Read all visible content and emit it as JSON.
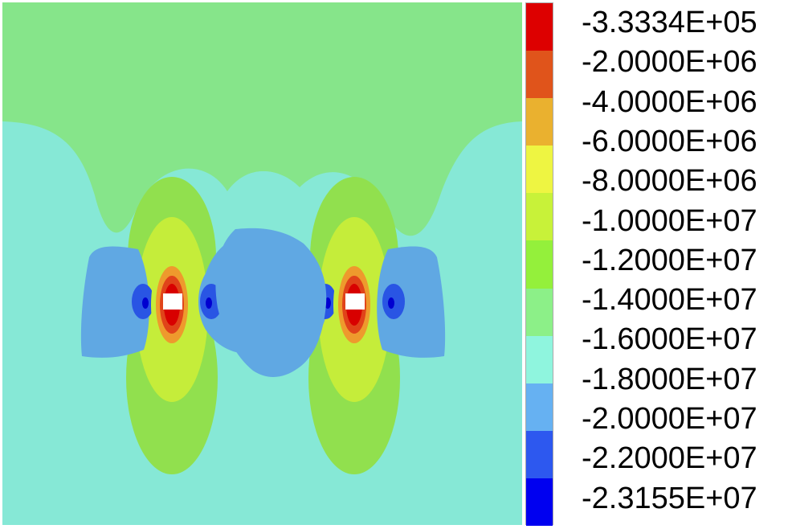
{
  "chart_data": {
    "type": "heatmap",
    "title": "",
    "xlabel": "",
    "ylabel": "",
    "legend_position": "right",
    "colorbar": {
      "labels": [
        "-3.3334E+05",
        "-2.0000E+06",
        "-4.0000E+06",
        "-6.0000E+06",
        "-8.0000E+06",
        "-1.0000E+07",
        "-1.2000E+07",
        "-1.4000E+07",
        "-1.6000E+07",
        "-1.8000E+07",
        "-2.0000E+07",
        "-2.2000E+07",
        "-2.3155E+07"
      ],
      "values": [
        -333340,
        -2000000,
        -4000000,
        -6000000,
        -8000000,
        -10000000,
        -12000000,
        -14000000,
        -16000000,
        -18000000,
        -20000000,
        -22000000,
        -23155000
      ],
      "colors": [
        "#dd0000",
        "#e0541b",
        "#eab12f",
        "#eef542",
        "#c8f239",
        "#94f03b",
        "#8cf088",
        "#8ff5de",
        "#66b1f2",
        "#2d58ef",
        "#0000f0"
      ]
    },
    "field_colors": {
      "outer": "#86e8d6",
      "upper": "#86e58a",
      "lobe": "#91e04e",
      "lobe_inner": "#c5ed3a",
      "blue": "#60a8e3",
      "blue_dark": "#2955e4",
      "blue_core": "#0000d0",
      "ring_orange": "#ee9a2d",
      "ring_red": "#e0431a",
      "core": "#d80000",
      "hole": "#ffffff"
    }
  }
}
